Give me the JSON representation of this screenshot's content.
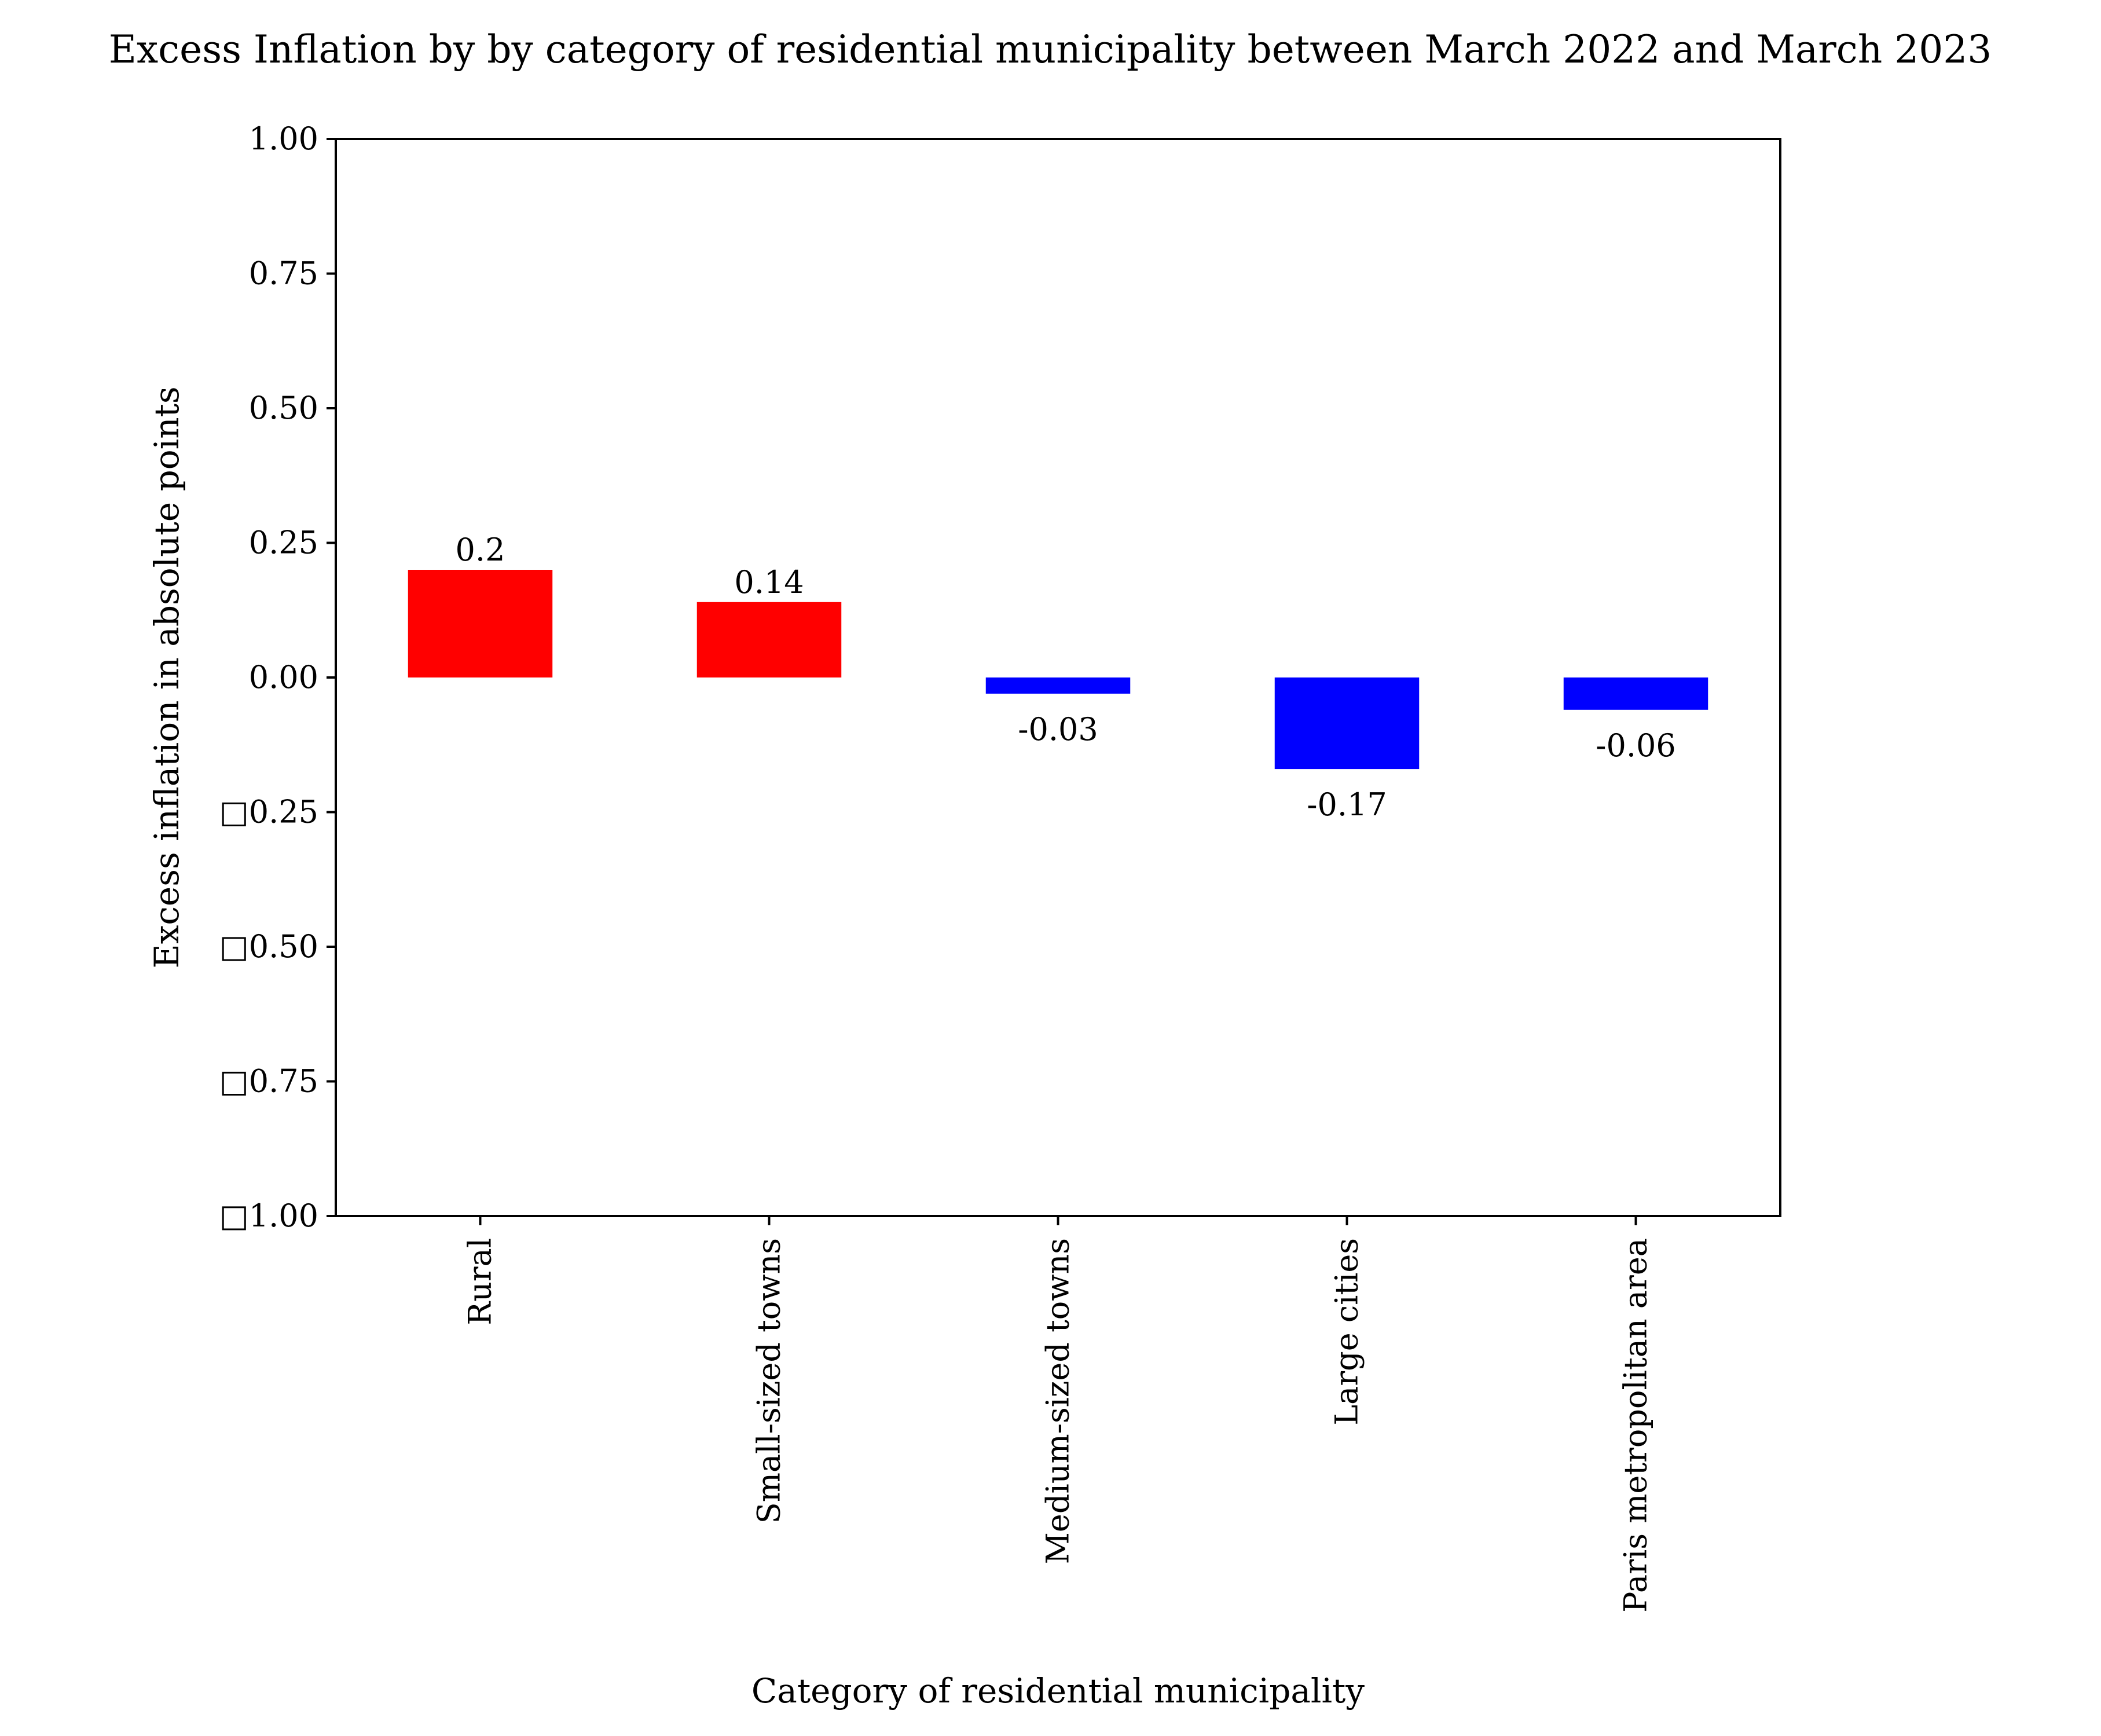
{
  "chart_data": {
    "type": "bar",
    "title": "Excess Inflation by by category of residential municipality between March 2022 and March 2023",
    "xlabel": "Category of residential municipality",
    "ylabel": "Excess inflation in absolute points",
    "categories": [
      "Rural",
      "Small-sized towns",
      "Medium-sized towns",
      "Large cities",
      "Paris metropolitan area"
    ],
    "values": [
      0.2,
      0.14,
      -0.03,
      -0.17,
      -0.06
    ],
    "data_labels": [
      "0.2",
      "0.14",
      "-0.03",
      "-0.17",
      "-0.06"
    ],
    "ylim": [
      -1.0,
      1.0
    ],
    "yticks": [
      1.0,
      0.75,
      0.5,
      0.25,
      0.0,
      -0.25,
      -0.5,
      -0.75,
      -1.0
    ],
    "ytick_labels": [
      "1.00",
      "0.75",
      "0.50",
      "0.25",
      "0.00",
      "□0.25",
      "□0.50",
      "□0.75",
      "□1.00"
    ],
    "colors": {
      "positive": "#ff0000",
      "negative": "#0000ff"
    },
    "grid": false,
    "legend": "none"
  }
}
